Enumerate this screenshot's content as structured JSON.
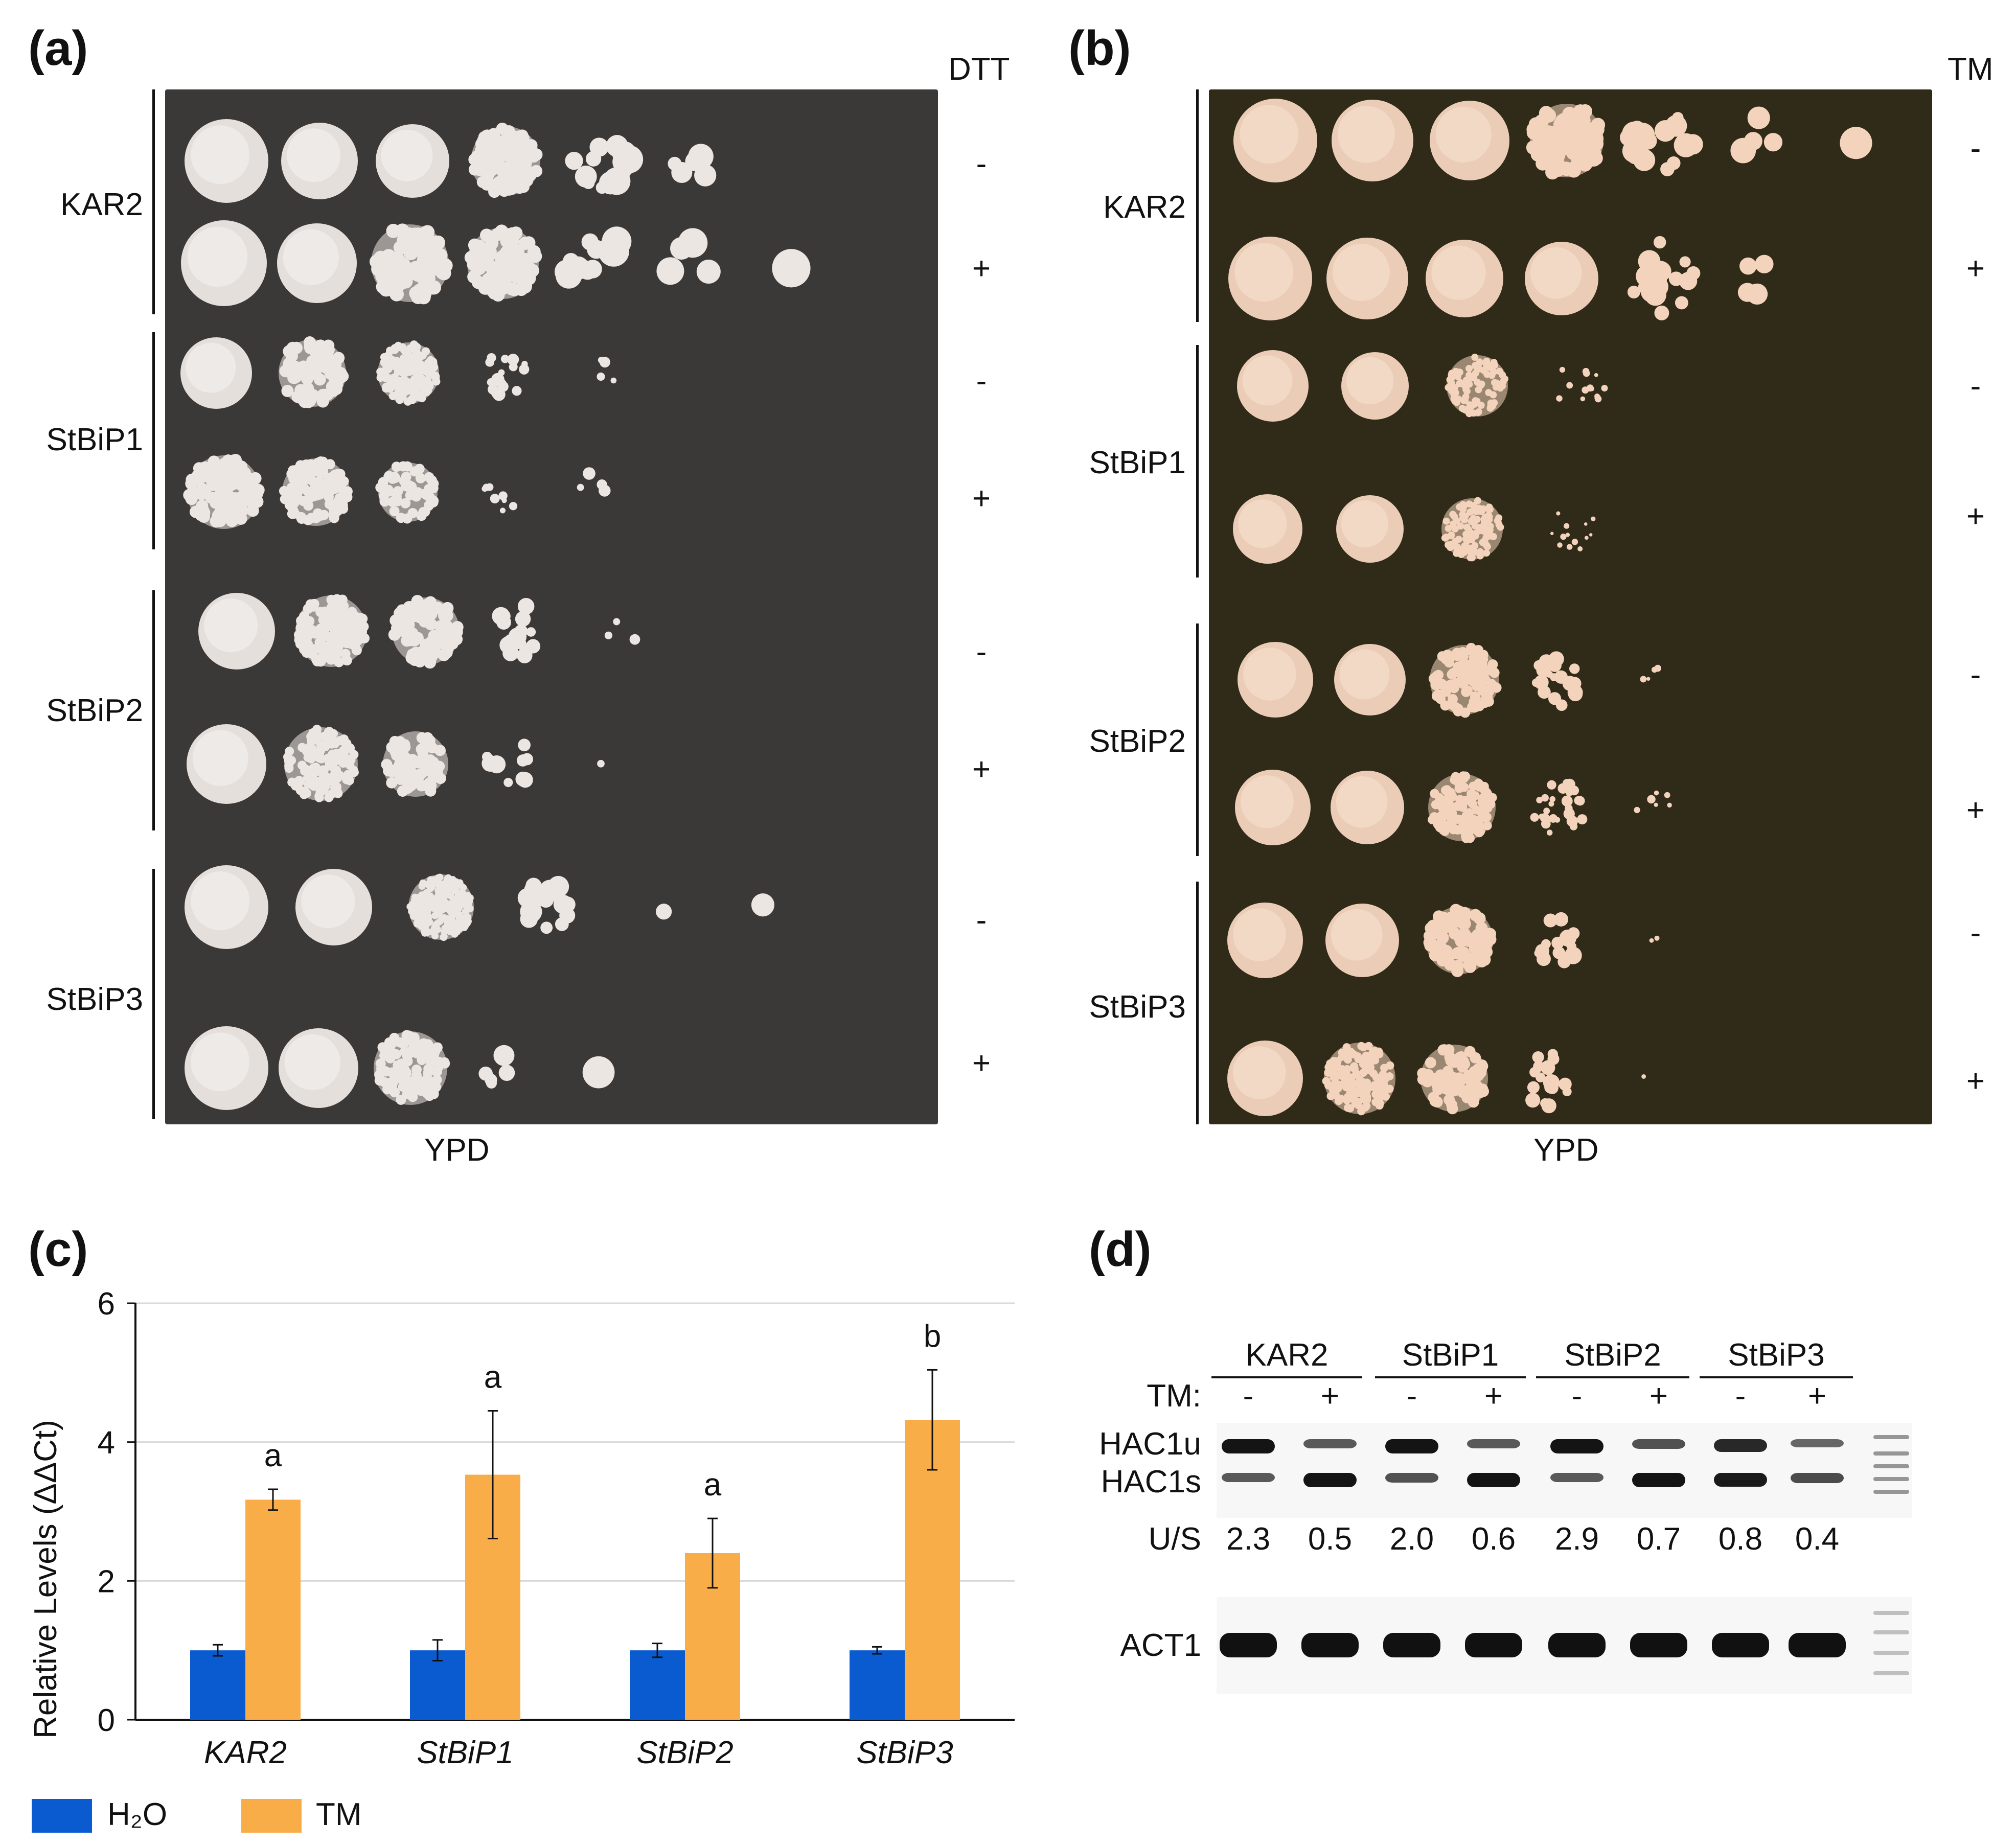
{
  "panels": {
    "a": {
      "letter": "(a)",
      "treatment": "DTT",
      "medium": "YPD",
      "strains": [
        "KAR2",
        "StBiP1",
        "StBiP2",
        "StBiP3"
      ],
      "signs": [
        "-",
        "+",
        "-",
        "+",
        "-",
        "+",
        "-",
        "+"
      ]
    },
    "b": {
      "letter": "(b)",
      "treatment": "TM",
      "medium": "YPD",
      "strains": [
        "KAR2",
        "StBiP1",
        "StBiP2",
        "StBiP3"
      ],
      "signs": [
        "-",
        "+",
        "-",
        "+",
        "-",
        "+",
        "-",
        "+"
      ]
    },
    "c": {
      "letter": "(c)"
    },
    "d": {
      "letter": "(d)",
      "lanes": [
        "KAR2",
        "StBiP1",
        "StBiP2",
        "StBiP3"
      ],
      "tm_label": "TM:",
      "tm_signs": [
        "-",
        "+",
        "-",
        "+",
        "-",
        "+",
        "-",
        "+"
      ],
      "band_upper": "HAC1u",
      "band_lower": "HAC1s",
      "ratio_label": "U/S",
      "ratios": [
        "2.3",
        "0.5",
        "2.0",
        "0.6",
        "2.9",
        "0.7",
        "0.8",
        "0.4"
      ],
      "control_band": "ACT1"
    }
  },
  "colors": {
    "h2o": "#0b5bd0",
    "tm": "#f9ad48",
    "plate_a": "#3b3938",
    "plate_b": "#302b18",
    "colony_a": "#ece6e2",
    "colony_b": "#f3d3bc"
  },
  "chart_data": {
    "type": "bar",
    "ylabel": "Relative Levels (ΔΔCt)",
    "xlabel": "",
    "ylim": [
      0,
      6
    ],
    "yticks": [
      "0",
      "2",
      "4",
      "6"
    ],
    "categories": [
      "KAR2",
      "StBiP1",
      "StBiP2",
      "StBiP3"
    ],
    "series": [
      {
        "name": "H₂O",
        "values": [
          1.0,
          1.0,
          1.0,
          1.0
        ],
        "errors": [
          0.08,
          0.15,
          0.1,
          0.05
        ]
      },
      {
        "name": "TM",
        "values": [
          3.17,
          3.53,
          2.4,
          4.32
        ],
        "errors": [
          0.15,
          0.92,
          0.5,
          0.72
        ]
      }
    ],
    "significance": [
      "a",
      "a",
      "a",
      "b"
    ],
    "grid": true,
    "legend": "bottom-left"
  }
}
